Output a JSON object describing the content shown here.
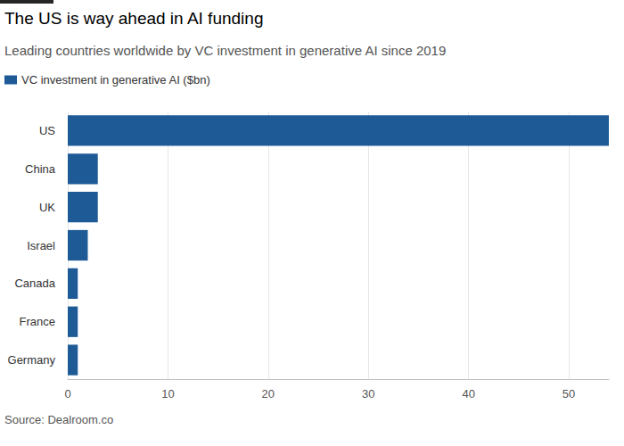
{
  "chart_data": {
    "type": "bar",
    "title": "The US is way ahead in AI funding",
    "subtitle": "Leading countries worldwide by VC investment in generative AI since 2019",
    "source": "Source: Dealroom.co",
    "orientation": "horizontal",
    "categories": [
      "US",
      "China",
      "UK",
      "Israel",
      "Canada",
      "France",
      "Germany"
    ],
    "series": [
      {
        "name": "VC investment in generative AI ($bn)",
        "color": "#1d5a96",
        "values": [
          54,
          3,
          3,
          2,
          1,
          1,
          1
        ]
      }
    ],
    "xlim": [
      0,
      54
    ],
    "xticks": [
      0,
      10,
      20,
      30,
      40,
      50
    ],
    "grid": true,
    "legend": "top-left"
  }
}
